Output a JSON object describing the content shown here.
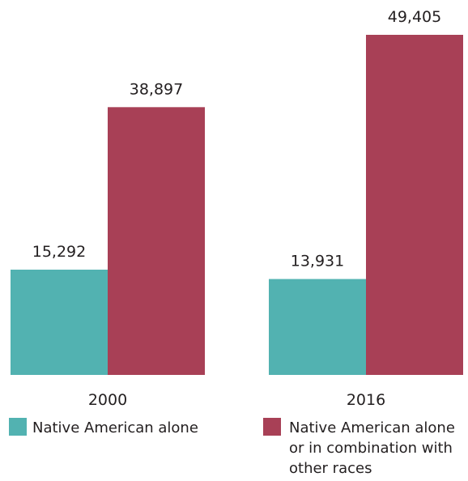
{
  "chart_data": {
    "type": "bar",
    "categories": [
      "2000",
      "2016"
    ],
    "series": [
      {
        "name": "Native American alone",
        "color": "#52b2b1",
        "values": [
          15292,
          13931
        ],
        "labels": [
          "15,292",
          "13,931"
        ]
      },
      {
        "name": "Native American alone or in combination with other races",
        "color": "#a84056",
        "values": [
          38897,
          49405
        ],
        "labels": [
          "38,897",
          "49,405"
        ]
      }
    ],
    "legend_lines": [
      [
        "Native American alone"
      ],
      [
        "Native American alone",
        "or in combination with",
        "other races"
      ]
    ],
    "title": "",
    "xlabel": "",
    "ylabel": "",
    "ylim": [
      0,
      49405
    ],
    "grid": false,
    "legend": "bottom"
  }
}
